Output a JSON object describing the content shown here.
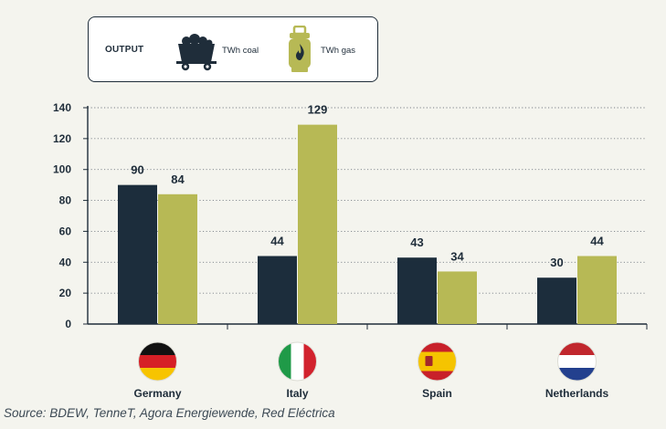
{
  "legend": {
    "title": "OUTPUT",
    "items": [
      {
        "label": "TWh coal",
        "icon": "coal-wagon-icon"
      },
      {
        "label": "TWh gas",
        "icon": "gas-cylinder-icon"
      }
    ]
  },
  "colors": {
    "coal": "#1c2d3c",
    "gas": "#b7b955",
    "axis": "#1f2d3a",
    "grid": "#7a8088"
  },
  "chart_data": {
    "type": "bar",
    "categories": [
      "Germany",
      "Italy",
      "Spain",
      "Netherlands"
    ],
    "series": [
      {
        "name": "TWh coal",
        "values": [
          90,
          44,
          43,
          30
        ]
      },
      {
        "name": "TWh gas",
        "values": [
          84,
          129,
          34,
          44
        ]
      }
    ],
    "data_labels": [
      [
        "90",
        "84"
      ],
      [
        "44",
        "129"
      ],
      [
        "43",
        "34"
      ],
      [
        "30",
        "44"
      ]
    ],
    "yticks": [
      "0",
      "20",
      "40",
      "60",
      "80",
      "100",
      "120",
      "140"
    ],
    "ylim": [
      0,
      140
    ],
    "grid": true,
    "flag_icons": [
      "germany-flag-icon",
      "italy-flag-icon",
      "spain-flag-icon",
      "netherlands-flag-icon"
    ]
  },
  "source": "Source: BDEW, TenneT, Agora Energiewende, Red Eléctrica"
}
